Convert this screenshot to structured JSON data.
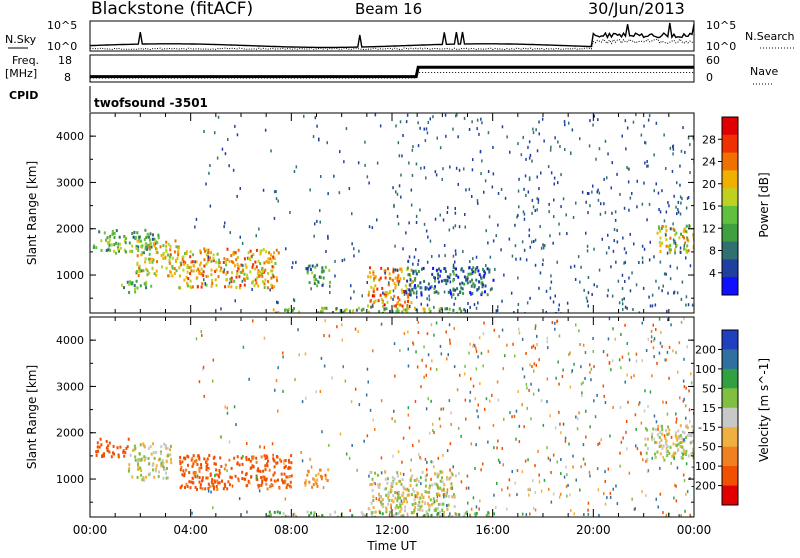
{
  "header": {
    "station": "Blackstone (fitACF)",
    "beam": "Beam 16",
    "date": "30/Jun/2013"
  },
  "strip_labels": {
    "nsky": "N.Sky",
    "nsearch": "N.Search",
    "freq_1": "Freq.",
    "freq_2": "[MHz]",
    "nave": "Nave",
    "cpid": "CPID",
    "cpid_value": "twofsound -3501"
  },
  "strip_ticks": {
    "nsky_left": [
      "10^5",
      "10^0"
    ],
    "nsky_right": [
      "10^5",
      "10^0"
    ],
    "freq_left": [
      "18",
      "8"
    ],
    "nave_right": [
      "60",
      "0"
    ]
  },
  "x_axis": {
    "label": "Time UT",
    "ticks": [
      "00:00",
      "04:00",
      "08:00",
      "12:00",
      "16:00",
      "20:00",
      "00:00"
    ]
  },
  "chart_data": [
    {
      "type": "heatmap",
      "name": "power",
      "ylabel": "Slant Range [km]",
      "yticks": [
        "1000",
        "2000",
        "3000",
        "4000"
      ],
      "ylim": [
        180,
        4500
      ],
      "xlim": [
        "00:00",
        "24:00"
      ],
      "colorbar": {
        "label": "Power [dB]",
        "ticks": [
          "4",
          "8",
          "12",
          "16",
          "20",
          "24",
          "28"
        ],
        "range": [
          0,
          32
        ],
        "colors": [
          "#1010ff",
          "#2040a0",
          "#307070",
          "#40a040",
          "#60c040",
          "#c0d020",
          "#f0b000",
          "#f07000",
          "#f03000",
          "#e00000"
        ]
      },
      "echo_regions": [
        {
          "t0": 0.1,
          "t1": 2.7,
          "r0": 1500,
          "r1": 2000,
          "level": 12
        },
        {
          "t0": 1.8,
          "t1": 3.5,
          "r0": 1000,
          "r1": 1800,
          "level": 20
        },
        {
          "t0": 3.5,
          "t1": 7.5,
          "r0": 750,
          "r1": 1600,
          "level": 22
        },
        {
          "t0": 8.5,
          "t1": 9.5,
          "r0": 800,
          "r1": 1250,
          "level": 10
        },
        {
          "t0": 1.2,
          "t1": 2.4,
          "r0": 650,
          "r1": 900,
          "level": 12
        },
        {
          "t0": 11.0,
          "t1": 12.8,
          "r0": 350,
          "r1": 1200,
          "level": 24
        },
        {
          "t0": 12.5,
          "t1": 16.0,
          "r0": 600,
          "r1": 1200,
          "level": 6
        },
        {
          "t0": 22.5,
          "t1": 24.0,
          "r0": 1500,
          "r1": 2100,
          "level": 18
        },
        {
          "t0": 7.0,
          "t1": 15.0,
          "r0": 180,
          "r1": 320,
          "level": 14
        }
      ]
    },
    {
      "type": "heatmap",
      "name": "velocity",
      "ylabel": "Slant Range [km]",
      "yticks": [
        "1000",
        "2000",
        "3000",
        "4000"
      ],
      "ylim": [
        180,
        4500
      ],
      "xlim": [
        "00:00",
        "24:00"
      ],
      "colorbar": {
        "label": "Velocity [m s^-1]",
        "ticks": [
          "200",
          "100",
          "50",
          "15",
          "-15",
          "-50",
          "-100",
          "-200"
        ],
        "colors": [
          "#2040c0",
          "#3070a0",
          "#30a040",
          "#80c040",
          "#c8c8c8",
          "#f0b040",
          "#f08020",
          "#f05000",
          "#e00000"
        ]
      },
      "echo_regions": [
        {
          "t0": 0.2,
          "t1": 1.5,
          "r0": 1500,
          "r1": 1900,
          "level": -150
        },
        {
          "t0": 1.5,
          "t1": 3.2,
          "r0": 1000,
          "r1": 1800,
          "level": 0
        },
        {
          "t0": 3.5,
          "t1": 8.0,
          "r0": 800,
          "r1": 1550,
          "level": -120
        },
        {
          "t0": 8.5,
          "t1": 9.5,
          "r0": 850,
          "r1": 1250,
          "level": -60
        },
        {
          "t0": 11.0,
          "t1": 14.5,
          "r0": 300,
          "r1": 1200,
          "level": 0
        },
        {
          "t0": 22.0,
          "t1": 24.0,
          "r0": 1400,
          "r1": 2200,
          "level": 0
        },
        {
          "t0": 7.0,
          "t1": 16.0,
          "r0": 180,
          "r1": 320,
          "level": 40
        }
      ]
    }
  ]
}
